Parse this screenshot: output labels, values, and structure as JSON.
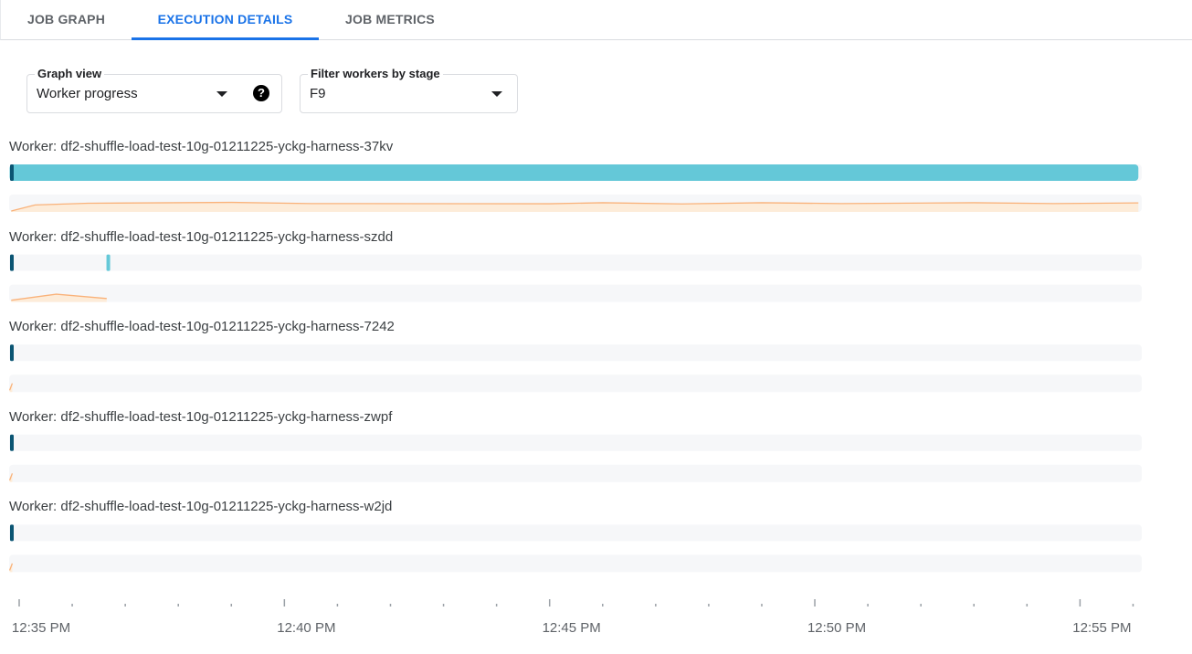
{
  "tabs": [
    {
      "label": "JOB GRAPH",
      "active": false
    },
    {
      "label": "EXECUTION DETAILS",
      "active": true
    },
    {
      "label": "JOB METRICS",
      "active": false
    }
  ],
  "graph_view": {
    "label": "Graph view",
    "value": "Worker progress",
    "help_icon": "help-circle-icon"
  },
  "stage_filter": {
    "label": "Filter workers by stage",
    "value": "F9"
  },
  "colors": {
    "accent": "#1a73e8",
    "progress": "#64c8d8",
    "start_marker": "#0b5573",
    "spark_line": "#f9b27a",
    "spark_fill": "#fdecd9",
    "track": "#f6f7f9"
  },
  "time_axis": {
    "start": "12:35 PM",
    "minor_tick_minutes": 1,
    "last_minute": 21,
    "labels": [
      "12:35 PM",
      "12:40 PM",
      "12:45 PM",
      "12:50 PM",
      "12:55 PM"
    ]
  },
  "workers": [
    {
      "label": "Worker: df2-shuffle-load-test-10g-01211225-yckg-harness-37kv",
      "progress": [
        [
          -0.18,
          21.1
        ]
      ],
      "markers": [],
      "spark": [
        [
          -0.15,
          0.05
        ],
        [
          0.3,
          0.4
        ],
        [
          1.3,
          0.5
        ],
        [
          4,
          0.55
        ],
        [
          5.5,
          0.48
        ],
        [
          10,
          0.47
        ],
        [
          11,
          0.53
        ],
        [
          12.5,
          0.46
        ],
        [
          14,
          0.53
        ],
        [
          15.5,
          0.48
        ],
        [
          18,
          0.53
        ],
        [
          19.5,
          0.48
        ],
        [
          21.1,
          0.52
        ]
      ]
    },
    {
      "label": "Worker: df2-shuffle-load-test-10g-01211225-yckg-harness-szdd",
      "progress": [],
      "markers": [
        1.68
      ],
      "spark": [
        [
          -0.15,
          0.1
        ],
        [
          0.7,
          0.45
        ],
        [
          1.65,
          0.2
        ]
      ]
    },
    {
      "label": "Worker: df2-shuffle-load-test-10g-01211225-yckg-harness-7242",
      "progress": [],
      "markers": [],
      "spark": [
        [
          -0.18,
          0.1
        ],
        [
          -0.13,
          0.5
        ]
      ]
    },
    {
      "label": "Worker: df2-shuffle-load-test-10g-01211225-yckg-harness-zwpf",
      "progress": [],
      "markers": [],
      "spark": [
        [
          -0.18,
          0.1
        ],
        [
          -0.13,
          0.5
        ]
      ]
    },
    {
      "label": "Worker: df2-shuffle-load-test-10g-01211225-yckg-harness-w2jd",
      "progress": [],
      "markers": [],
      "spark": [
        [
          -0.18,
          0.1
        ],
        [
          -0.13,
          0.5
        ]
      ]
    }
  ]
}
